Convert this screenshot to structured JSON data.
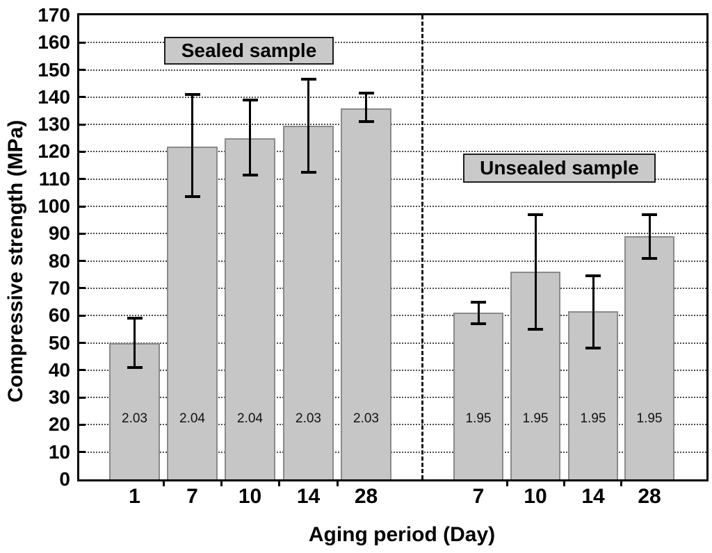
{
  "figure": {
    "background": "#ffffff"
  },
  "chart_data": {
    "type": "bar",
    "title": "",
    "xlabel": "Aging period (Day)",
    "ylabel": "Compressive strength (MPa)",
    "ylim": [
      0,
      170
    ],
    "ytick_step": 10,
    "y_tick_labels": [
      "0",
      "10",
      "20",
      "30",
      "40",
      "50",
      "60",
      "70",
      "80",
      "90",
      "100",
      "110",
      "120",
      "130",
      "140",
      "150",
      "160",
      "170"
    ],
    "grid": "horizontal dotted lines at every 10 MPa",
    "legend_position": "none",
    "separator_note": "vertical dashed line between sealed and unsealed groups",
    "groups": [
      {
        "name": "Sealed sample",
        "categories": [
          "1",
          "7",
          "10",
          "14",
          "28"
        ],
        "values": [
          50,
          122,
          125,
          129.5,
          136
        ],
        "error_low": [
          41,
          103.5,
          111.5,
          112.5,
          131
        ],
        "error_high": [
          59,
          141,
          139,
          146.5,
          141.5
        ],
        "bar_labels": [
          "2.03",
          "2.04",
          "2.04",
          "2.03",
          "2.03"
        ]
      },
      {
        "name": "Unsealed sample",
        "categories": [
          "7",
          "10",
          "14",
          "28"
        ],
        "values": [
          61,
          76,
          61.5,
          89
        ],
        "error_low": [
          57,
          55,
          48,
          81
        ],
        "error_high": [
          65,
          97,
          74.5,
          97
        ],
        "bar_labels": [
          "1.95",
          "1.95",
          "1.95",
          "1.95"
        ]
      }
    ],
    "colors": {
      "bar_fill": "#c6c6c6",
      "bar_border": "#8a8a8a",
      "label_box_fill": "#c9c9c9",
      "axis": "#000000",
      "text": "#000000"
    }
  }
}
